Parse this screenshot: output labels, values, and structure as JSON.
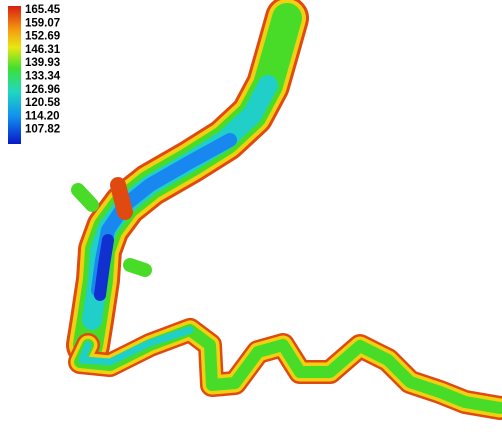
{
  "legend": {
    "labels": [
      "165.45",
      "159.07",
      "152.69",
      "146.31",
      "139.93",
      "133.34",
      "126.96",
      "120.58",
      "114.20",
      "107.82"
    ]
  }
}
